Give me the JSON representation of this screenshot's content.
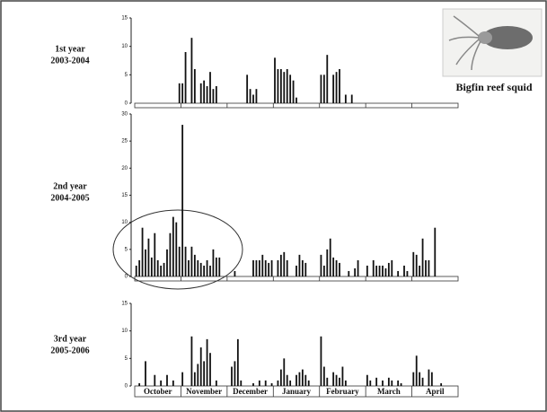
{
  "chart_data": [
    {
      "type": "bar",
      "label": "1st year",
      "sublabel": "2003-2004",
      "color": "#111111",
      "ylim": [
        0,
        15
      ],
      "yticks": [
        0,
        5,
        10,
        15
      ],
      "values": [
        [
          null,
          null,
          null,
          null,
          null,
          null,
          null,
          null,
          null,
          null,
          null,
          null,
          null,
          null,
          3.5
        ],
        [
          3.5,
          9,
          null,
          11.5,
          6,
          null,
          3.5,
          4,
          3,
          5.5,
          2.5,
          3,
          null,
          null,
          null
        ],
        [
          null,
          null,
          null,
          null,
          null,
          null,
          5,
          2.5,
          1.5,
          2.5,
          null,
          null,
          null,
          null,
          null
        ],
        [
          8,
          6,
          6,
          5.5,
          6,
          5,
          4,
          1,
          null,
          null,
          null,
          null,
          null,
          null,
          null
        ],
        [
          5,
          5,
          8.5,
          null,
          5,
          5.5,
          6,
          null,
          1.5,
          null,
          1.5,
          null,
          null,
          null,
          null
        ],
        [],
        []
      ]
    },
    {
      "type": "bar",
      "label": "2nd year",
      "sublabel": "2004-2005",
      "color": "#111111",
      "ylim": [
        0,
        30
      ],
      "yticks": [
        0,
        5,
        10,
        15,
        20,
        25,
        30
      ],
      "values": [
        [
          2,
          3,
          9,
          5,
          7,
          3.5,
          8,
          3,
          2,
          2.5,
          5,
          8,
          11,
          10,
          5.5
        ],
        [
          28,
          5.5,
          3,
          5.5,
          4,
          3,
          2.5,
          2,
          3,
          2,
          5,
          3.5,
          3.5,
          null,
          null
        ],
        [
          null,
          null,
          1,
          null,
          null,
          null,
          null,
          null,
          3,
          3,
          3,
          4,
          3,
          2.5,
          3
        ],
        [
          null,
          3,
          4,
          4.5,
          3,
          null,
          null,
          2,
          4,
          3,
          2.5,
          null,
          null,
          null,
          null
        ],
        [
          4,
          2,
          5,
          7,
          3.5,
          3,
          2.5,
          null,
          null,
          1,
          null,
          1.5,
          3,
          null,
          null
        ],
        [
          2,
          null,
          3,
          2,
          2,
          2,
          1.5,
          2.5,
          3,
          null,
          1,
          null,
          2,
          1,
          null
        ],
        [
          4.5,
          4,
          2,
          7,
          3,
          3,
          null,
          9,
          null,
          null,
          null,
          null,
          null,
          null,
          null
        ]
      ]
    },
    {
      "type": "bar",
      "label": "3rd year",
      "sublabel": "2005-2006",
      "color": "#111111",
      "ylim": [
        0,
        15
      ],
      "yticks": [
        0,
        5,
        10,
        15
      ],
      "categories": [
        "October",
        "November",
        "December",
        "January",
        "February",
        "March",
        "April"
      ],
      "values": [
        [
          null,
          0.5,
          null,
          4.5,
          null,
          null,
          2,
          null,
          1,
          null,
          2,
          null,
          1,
          null,
          null
        ],
        [
          2.5,
          null,
          null,
          9,
          2.5,
          4,
          7,
          4.5,
          8.5,
          6,
          null,
          1,
          null,
          null,
          null
        ],
        [
          null,
          3.5,
          4.5,
          8.5,
          1,
          null,
          null,
          null,
          0.5,
          null,
          1,
          null,
          1,
          null,
          0.5
        ],
        [
          null,
          1,
          3,
          5,
          2,
          1,
          null,
          2,
          2.5,
          3,
          2,
          1,
          null,
          null,
          null
        ],
        [
          9,
          3.5,
          1.5,
          null,
          2.5,
          2,
          1.5,
          3.5,
          1,
          null,
          null,
          null,
          null,
          null,
          null
        ],
        [
          2,
          1,
          null,
          1.5,
          null,
          1,
          null,
          1.5,
          1,
          null,
          1,
          0.5,
          null,
          null,
          null
        ],
        [
          2.5,
          5.5,
          2.5,
          1.5,
          null,
          3,
          2.5,
          null,
          null,
          0.5,
          null,
          null,
          null,
          null,
          null
        ]
      ]
    }
  ],
  "image_caption": "Bigfin reef squid"
}
